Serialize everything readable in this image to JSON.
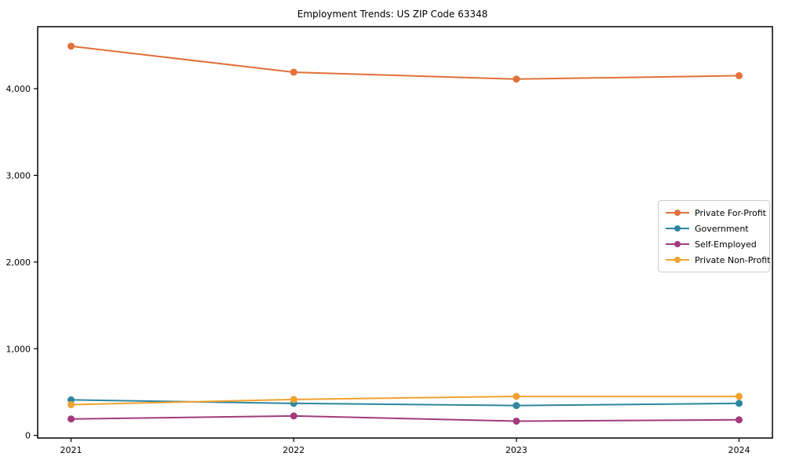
{
  "chart_data": {
    "type": "line",
    "title": "Employment Trends: US ZIP Code 63348",
    "xlabel": "",
    "ylabel": "",
    "x": [
      2021,
      2022,
      2023,
      2024
    ],
    "xtick_labels": [
      "2021",
      "2022",
      "2023",
      "2024"
    ],
    "yticks": [
      {
        "value": 0,
        "label": "0"
      },
      {
        "value": 1000,
        "label": "1,000"
      },
      {
        "value": 2000,
        "label": "2,000"
      },
      {
        "value": 3000,
        "label": "3,000"
      },
      {
        "value": 4000,
        "label": "4,000"
      }
    ],
    "xlim": [
      2020.85,
      2024.15
    ],
    "ylim": [
      -30,
      4715
    ],
    "grid": false,
    "legend_position": "center-right-inside",
    "legend_border_color": "#cccccc",
    "spine_color": "#000000",
    "background_color": "#ffffff",
    "series": [
      {
        "name": "Private For-Profit",
        "color": "#E2713B",
        "values": [
          4490,
          4190,
          4110,
          4150
        ]
      },
      {
        "name": "Government",
        "color": "#2E86A0",
        "values": [
          410,
          370,
          345,
          370
        ]
      },
      {
        "name": "Self-Employed",
        "color": "#A23B7E",
        "values": [
          190,
          225,
          165,
          180
        ]
      },
      {
        "name": "Private Non-Profit",
        "color": "#F0A330",
        "values": [
          355,
          415,
          450,
          450
        ]
      }
    ]
  }
}
